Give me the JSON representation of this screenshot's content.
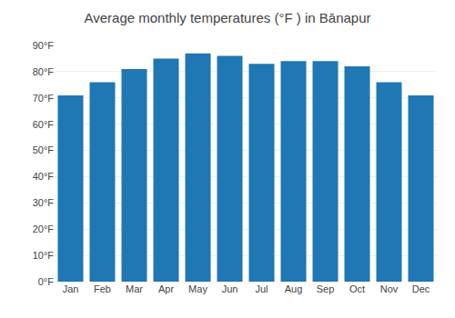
{
  "chart_data": {
    "type": "bar",
    "title": "Average monthly temperatures (°F ) in Bānapur",
    "categories": [
      "Jan",
      "Feb",
      "Mar",
      "Apr",
      "May",
      "Jun",
      "Jul",
      "Aug",
      "Sep",
      "Oct",
      "Nov",
      "Dec"
    ],
    "values": [
      71,
      76,
      81,
      85,
      87,
      86,
      83,
      84,
      84,
      82,
      76,
      71
    ],
    "ylim": [
      0,
      90
    ],
    "yticks": [
      {
        "value": 0,
        "label": "0°F"
      },
      {
        "value": 10,
        "label": "10°F"
      },
      {
        "value": 20,
        "label": "20°F"
      },
      {
        "value": 30,
        "label": "30°F"
      },
      {
        "value": 40,
        "label": "40°F"
      },
      {
        "value": 50,
        "label": "50°F"
      },
      {
        "value": 60,
        "label": "60°F"
      },
      {
        "value": 70,
        "label": "70°F"
      },
      {
        "value": 80,
        "label": "80°F"
      },
      {
        "value": 90,
        "label": "90°F"
      }
    ],
    "grid": true
  }
}
